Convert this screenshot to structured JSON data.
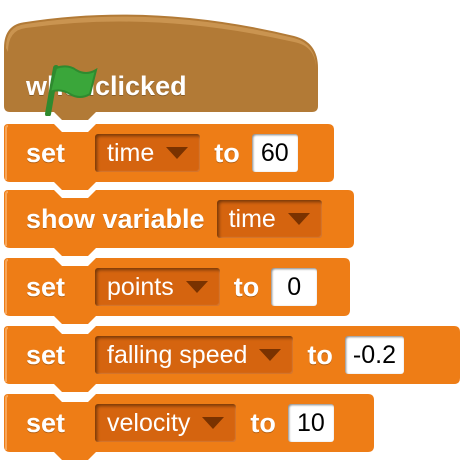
{
  "colors": {
    "hat": "#b8803a",
    "variables": "#ee7d16",
    "flag": "#3aa63a"
  },
  "hat": {
    "when": "when",
    "icon": "green-flag-icon",
    "clicked": "clicked"
  },
  "blocks": [
    {
      "keyword": "set",
      "variable": "time",
      "to": "to",
      "value": "60"
    },
    {
      "keyword": "show variable",
      "variable": "time"
    },
    {
      "keyword": "set",
      "variable": "points",
      "to": "to",
      "value": "0"
    },
    {
      "keyword": "set",
      "variable": "falling speed",
      "to": "to",
      "value": "-0.2"
    },
    {
      "keyword": "set",
      "variable": "velocity",
      "to": "to",
      "value": "10"
    }
  ]
}
